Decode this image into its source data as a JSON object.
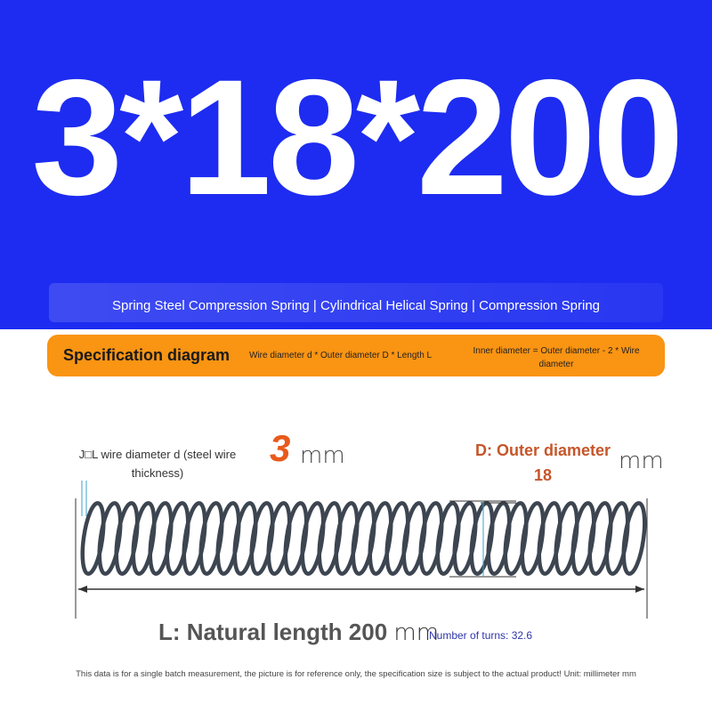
{
  "hero": {
    "size_text": "3*18*200",
    "subtitle": "Spring Steel Compression Spring | Cylindrical Helical Spring | Compression Spring"
  },
  "spec_bar": {
    "title": "Specification diagram",
    "formula": "Wire diameter d * Outer diameter D * Length L",
    "inner_formula": "Inner diameter = Outer diameter - 2 * Wire diameter"
  },
  "diagram": {
    "wire_label": "J\u0000L wire diameter d (steel wire thickness)",
    "wire_value": "3",
    "wire_unit": "mm",
    "outer_label": "D: Outer diameter",
    "outer_value": "18",
    "outer_unit": "mm",
    "length_label": "L: Natural length 200",
    "length_unit": "mm",
    "turns": "Number of turns: 32.6"
  },
  "footnote": "This data is for a single batch measurement, the picture is for reference only, the specification size is subject to the actual product! Unit: millimeter mm",
  "colors": {
    "hero_blue": "#1d2cf0",
    "spec_orange": "#fa9413",
    "accent_orange": "#e85a1c",
    "turns_blue": "#2e35a8"
  }
}
